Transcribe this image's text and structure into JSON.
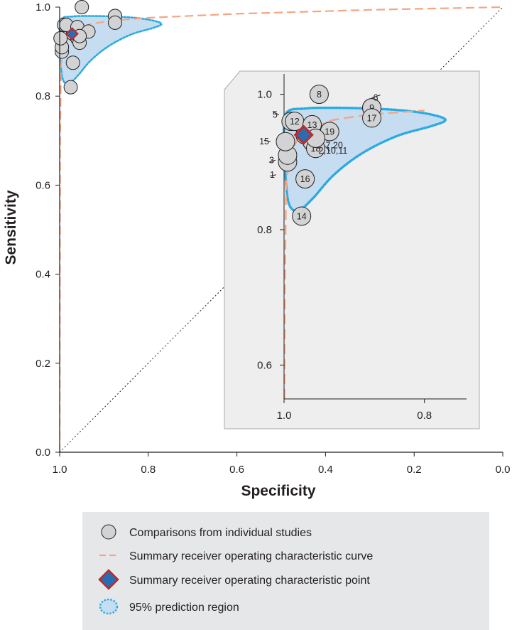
{
  "chart_data": {
    "type": "scatter",
    "title": "",
    "xlabel": "Specificity",
    "ylabel": "Sensitivity",
    "xlim": [
      1.0,
      0.0
    ],
    "ylim": [
      0.0,
      1.0
    ],
    "x_ticks": [
      "1.0",
      "0.8",
      "0.6",
      "0.4",
      "0.2",
      "0.0"
    ],
    "y_ticks": [
      "0.0",
      "0.2",
      "0.4",
      "0.6",
      "0.8",
      "1.0"
    ],
    "reference_line": "chance diagonal",
    "studies": [
      {
        "id": "1",
        "specificity": 0.995,
        "sensitivity": 0.9
      },
      {
        "id": "2",
        "specificity": 0.96,
        "sensitivity": 0.93
      },
      {
        "id": "3",
        "specificity": 0.995,
        "sensitivity": 0.91
      },
      {
        "id": "4",
        "specificity": 0.97,
        "sensitivity": 0.94
      },
      {
        "id": "5",
        "specificity": 0.99,
        "sensitivity": 0.96
      },
      {
        "id": "6",
        "specificity": 0.875,
        "sensitivity": 0.98
      },
      {
        "id": "7",
        "specificity": 0.955,
        "sensitivity": 0.935
      },
      {
        "id": "8",
        "specificity": 0.95,
        "sensitivity": 1.0
      },
      {
        "id": "9",
        "specificity": 0.875,
        "sensitivity": 0.98
      },
      {
        "id": "10",
        "specificity": 0.96,
        "sensitivity": 0.93
      },
      {
        "id": "11",
        "specificity": 0.96,
        "sensitivity": 0.93
      },
      {
        "id": "12",
        "specificity": 0.985,
        "sensitivity": 0.96
      },
      {
        "id": "13",
        "specificity": 0.96,
        "sensitivity": 0.955
      },
      {
        "id": "14",
        "specificity": 0.975,
        "sensitivity": 0.82
      },
      {
        "id": "15",
        "specificity": 0.998,
        "sensitivity": 0.93
      },
      {
        "id": "16",
        "specificity": 0.97,
        "sensitivity": 0.875
      },
      {
        "id": "17",
        "specificity": 0.875,
        "sensitivity": 0.965
      },
      {
        "id": "18",
        "specificity": 0.955,
        "sensitivity": 0.92
      },
      {
        "id": "19",
        "specificity": 0.935,
        "sensitivity": 0.945
      },
      {
        "id": "20",
        "specificity": 0.955,
        "sensitivity": 0.935
      }
    ],
    "summary_point": {
      "specificity": 0.972,
      "sensitivity": 0.94
    },
    "sroc_curve": [
      {
        "specificity": 1.0,
        "sensitivity": 0.0
      },
      {
        "specificity": 0.999,
        "sensitivity": 0.7
      },
      {
        "specificity": 0.997,
        "sensitivity": 0.87
      },
      {
        "specificity": 0.99,
        "sensitivity": 0.915
      },
      {
        "specificity": 0.98,
        "sensitivity": 0.935
      },
      {
        "specificity": 0.96,
        "sensitivity": 0.95
      },
      {
        "specificity": 0.93,
        "sensitivity": 0.962
      },
      {
        "specificity": 0.88,
        "sensitivity": 0.97
      },
      {
        "specificity": 0.8,
        "sensitivity": 0.976
      },
      {
        "specificity": 0.6,
        "sensitivity": 0.985
      },
      {
        "specificity": 0.3,
        "sensitivity": 0.994
      },
      {
        "specificity": 0.0,
        "sensitivity": 1.0
      }
    ],
    "prediction_region": [
      {
        "specificity": 0.997,
        "sensitivity": 0.972
      },
      {
        "specificity": 0.97,
        "sensitivity": 0.979
      },
      {
        "specificity": 0.93,
        "sensitivity": 0.98
      },
      {
        "specificity": 0.88,
        "sensitivity": 0.979
      },
      {
        "specificity": 0.83,
        "sensitivity": 0.976
      },
      {
        "specificity": 0.79,
        "sensitivity": 0.97
      },
      {
        "specificity": 0.77,
        "sensitivity": 0.962
      },
      {
        "specificity": 0.79,
        "sensitivity": 0.953
      },
      {
        "specificity": 0.84,
        "sensitivity": 0.938
      },
      {
        "specificity": 0.89,
        "sensitivity": 0.912
      },
      {
        "specificity": 0.93,
        "sensitivity": 0.88
      },
      {
        "specificity": 0.96,
        "sensitivity": 0.845
      },
      {
        "specificity": 0.98,
        "sensitivity": 0.828
      },
      {
        "specificity": 0.993,
        "sensitivity": 0.838
      },
      {
        "specificity": 0.998,
        "sensitivity": 0.88
      },
      {
        "specificity": 1.0,
        "sensitivity": 0.93
      }
    ],
    "inset": {
      "x_ticks": [
        "1.0",
        "0.8"
      ],
      "y_ticks": [
        "0.6",
        "0.8",
        "1.0"
      ],
      "xlim": [
        1.0,
        0.74
      ],
      "ylim": [
        0.55,
        1.03
      ],
      "label_callouts": [
        "5",
        "15",
        "3",
        "1",
        "6",
        "7,20",
        "2,10,11"
      ]
    },
    "legend": [
      {
        "symbol": "circle",
        "label": "Comparisons from individual studies"
      },
      {
        "symbol": "dashed-line",
        "label": "Summary receiver operating characteristic curve"
      },
      {
        "symbol": "diamond",
        "label": "Summary receiver operating characteristic point"
      },
      {
        "symbol": "dotted-region",
        "label": "95% prediction region"
      }
    ]
  },
  "colors": {
    "marker_fill": "#d1d3d4",
    "marker_stroke": "#231f20",
    "curve": "#f4a582",
    "region_fill": "#c6dcf0",
    "region_stroke": "#29abe2",
    "diamond_fill": "#2b6cb0",
    "diamond_stroke": "#c0282d",
    "inset_bg": "#eeeeee",
    "legend_bg": "#e6e7e8"
  }
}
